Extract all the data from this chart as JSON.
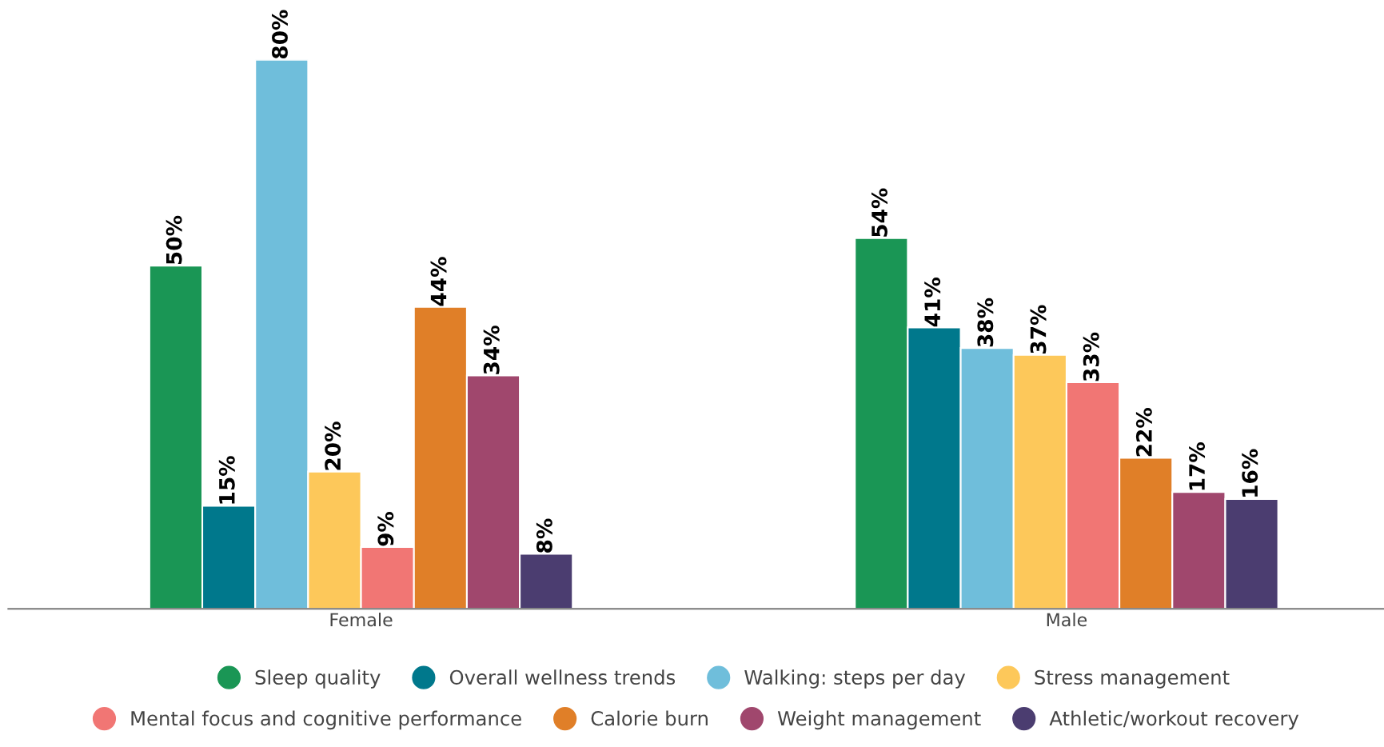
{
  "chart_data": {
    "type": "bar",
    "categories": [
      "Female",
      "Male"
    ],
    "series": [
      {
        "name": "Sleep quality",
        "color": "#1a9655",
        "values": [
          50,
          54
        ],
        "value_labels": [
          "50%",
          "54%"
        ]
      },
      {
        "name": "Overall wellness trends",
        "color": "#00788c",
        "values": [
          15,
          41
        ],
        "value_labels": [
          "15%",
          "41%"
        ]
      },
      {
        "name": "Walking: steps per day",
        "color": "#6fbedb",
        "values": [
          80,
          38
        ],
        "value_labels": [
          "80%",
          "38%"
        ]
      },
      {
        "name": "Stress management",
        "color": "#fdc85a",
        "values": [
          20,
          37
        ],
        "value_labels": [
          "20%",
          "37%"
        ]
      },
      {
        "name": "Mental focus and cognitive performance",
        "color": "#f17674",
        "values": [
          9,
          33
        ],
        "value_labels": [
          "9%",
          "33%"
        ]
      },
      {
        "name": "Calorie burn",
        "color": "#e07f28",
        "values": [
          44,
          22
        ],
        "value_labels": [
          "44%",
          "22%"
        ]
      },
      {
        "name": "Weight management",
        "color": "#a0476d",
        "values": [
          34,
          17
        ],
        "value_labels": [
          "34%",
          "17%"
        ]
      },
      {
        "name": "Athletic/workout recovery",
        "color": "#4b3d70",
        "values": [
          8,
          16
        ],
        "value_labels": [
          "8%",
          "16%"
        ]
      }
    ],
    "legend": "bottom",
    "grid": false
  }
}
